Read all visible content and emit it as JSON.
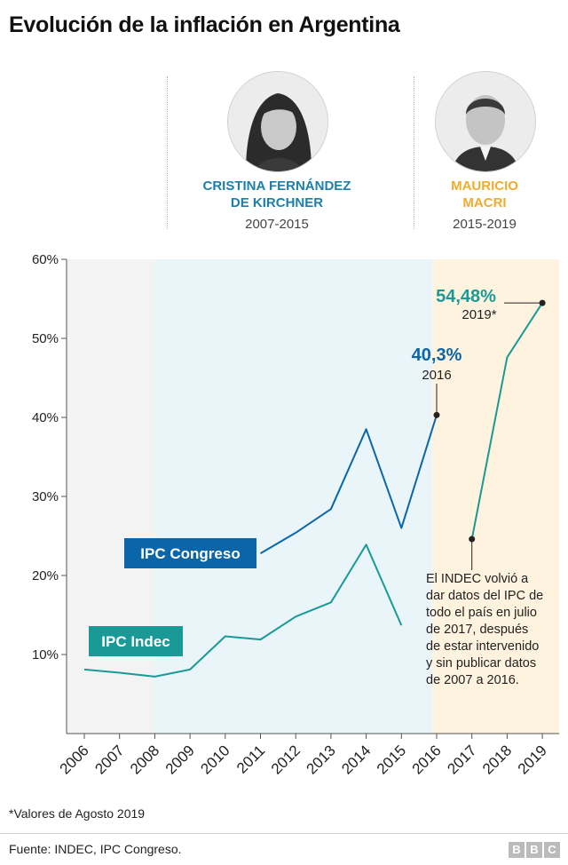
{
  "title": "Evolución de la inflación en Argentina",
  "presidents": [
    {
      "name_line1": "CRISTINA FERNÁNDEZ",
      "name_line2": "DE KIRCHNER",
      "years": "2007-2015",
      "color": "#1d7fa8"
    },
    {
      "name_line1": "MAURICIO",
      "name_line2": "MACRI",
      "years": "2015-2019",
      "color": "#f0ac2e"
    }
  ],
  "colors": {
    "ipc_congreso": "#0a66a8",
    "ipc_indec": "#1a9a96",
    "period_1": "#f3f3f3",
    "period_2": "#e9f5f8",
    "period_3": "#fdf3df"
  },
  "chart_data": {
    "type": "line",
    "x": [
      "2006",
      "2007",
      "2008",
      "2009",
      "2010",
      "2011",
      "2012",
      "2013",
      "2014",
      "2015",
      "2016",
      "2017",
      "2018",
      "2019"
    ],
    "ylim": [
      0,
      60
    ],
    "yticks": [
      10,
      20,
      30,
      40,
      50,
      60
    ],
    "ytick_labels": [
      "10%",
      "20%",
      "30%",
      "40%",
      "50%",
      "60%"
    ],
    "grid": false,
    "series": [
      {
        "name": "IPC Congreso",
        "values": [
          null,
          null,
          null,
          null,
          null,
          22.8,
          25.4,
          28.4,
          38.5,
          26.0,
          40.3,
          null,
          null,
          null
        ]
      },
      {
        "name": "IPC Indec",
        "values": [
          8.1,
          7.7,
          7.2,
          8.1,
          12.3,
          11.9,
          14.8,
          16.6,
          23.9,
          13.7,
          null,
          null,
          null,
          null
        ]
      },
      {
        "name": "",
        "values": [
          null,
          null,
          null,
          null,
          null,
          null,
          null,
          null,
          null,
          null,
          null,
          24.6,
          47.6,
          54.48
        ]
      }
    ],
    "annotations": {
      "congreso_2016_value": "40,3%",
      "congreso_2016_year": "2016",
      "indec_2019_value": "54,48%",
      "indec_2019_year": "2019*",
      "indec_note_lines": [
        "El INDEC volvió a",
        "dar datos del IPC de",
        "todo el país en julio",
        "de 2017, después",
        "de estar intervenido",
        "y sin publicar datos",
        "de 2007 a 2016."
      ]
    }
  },
  "footnote": "*Valores de Agosto 2019",
  "source": "Fuente: INDEC, IPC Congreso.",
  "logo": [
    "B",
    "B",
    "C"
  ]
}
